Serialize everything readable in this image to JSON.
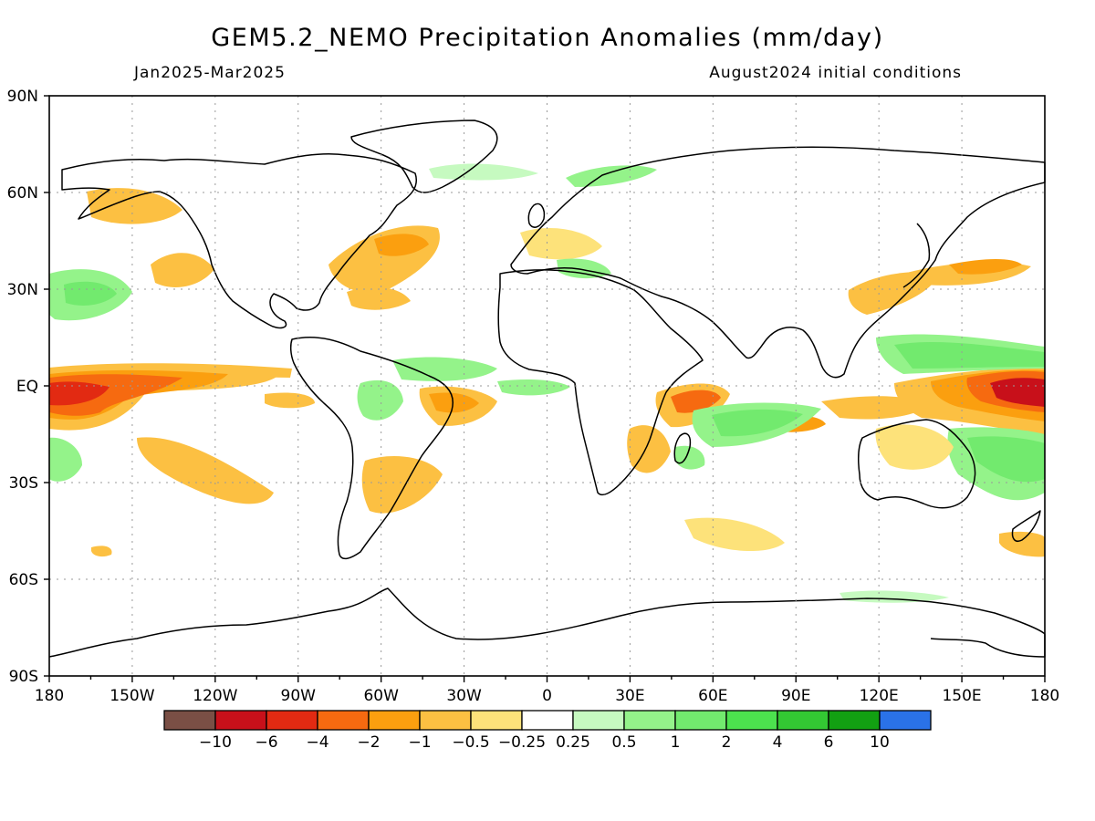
{
  "header": {
    "title": "GEM5.2_NEMO Precipitation Anomalies (mm/day)",
    "period": "Jan2025-Mar2025",
    "init": "August2024 initial conditions"
  },
  "map": {
    "lat_labels": [
      "90N",
      "60N",
      "30N",
      "EQ",
      "30S",
      "60S",
      "90S"
    ],
    "lon_labels": [
      "180",
      "150W",
      "120W",
      "90W",
      "60W",
      "30W",
      "0",
      "30E",
      "60E",
      "90E",
      "120E",
      "150E",
      "180"
    ]
  },
  "legend": {
    "labels": [
      "-10",
      "-6",
      "-4",
      "-2",
      "-1",
      "-0.5",
      "-0.25",
      "0.25",
      "0.5",
      "1",
      "2",
      "4",
      "6",
      "10"
    ],
    "colors": [
      "#7a4f45",
      "#c8101a",
      "#e22a12",
      "#f66a10",
      "#fb9f0f",
      "#fcc042",
      "#fde27a",
      "#ffffff",
      "#c6fac0",
      "#94f38a",
      "#72ea6e",
      "#4ce24e",
      "#33c833",
      "#12a012",
      "#2a72e8"
    ]
  },
  "colors": {
    "coast": "#000000",
    "grid": "#9a9a9a"
  }
}
